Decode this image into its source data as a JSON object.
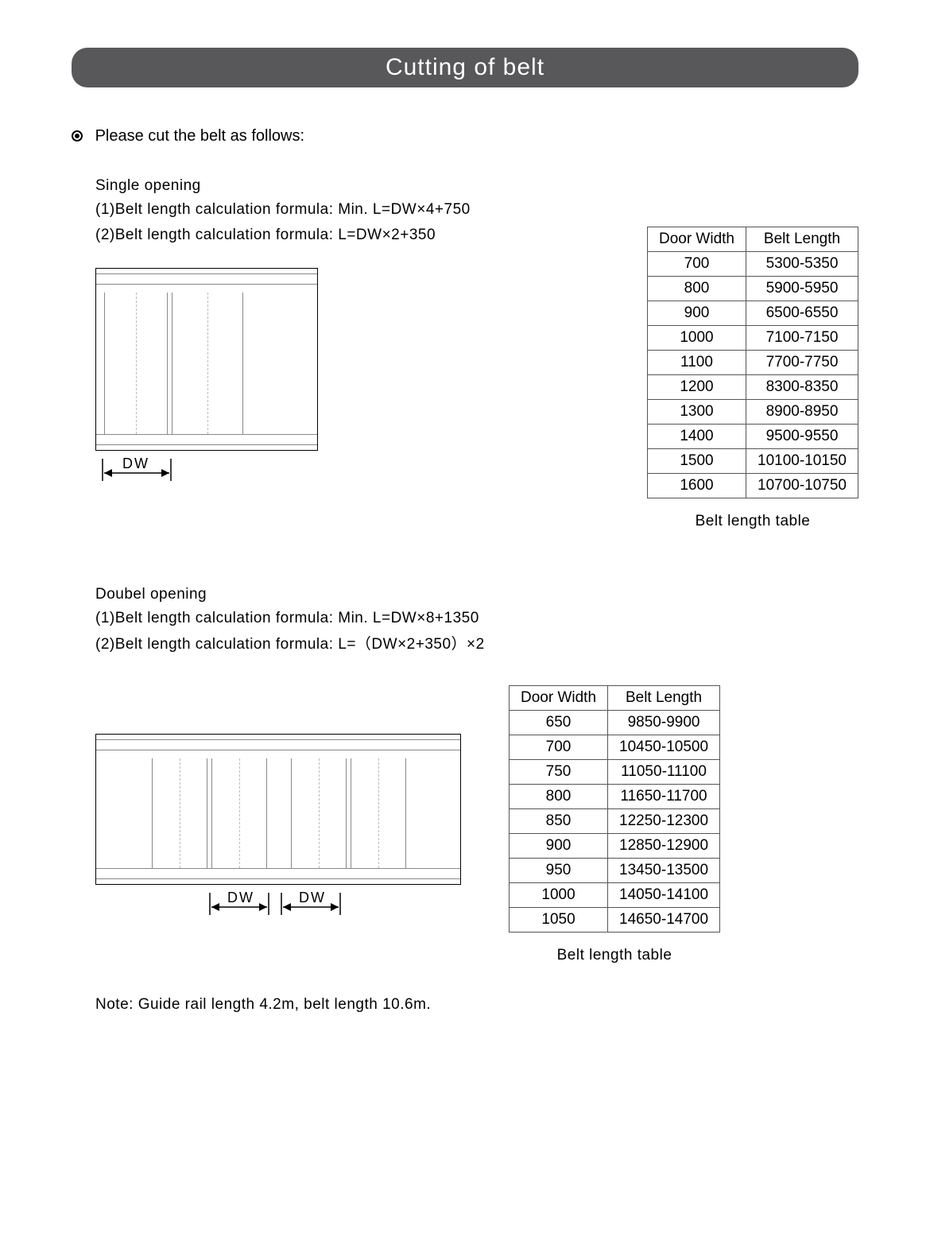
{
  "title": "Cutting of belt",
  "intro": "Please cut the belt as follows:",
  "single": {
    "heading": "Single opening",
    "formula1": "(1)Belt length calculation formula: Min. L=DW×4+750",
    "formula2": "(2)Belt length calculation formula: L=DW×2+350",
    "dw_label": "DW",
    "table": {
      "columns": [
        "Door Width",
        "Belt Length"
      ],
      "rows": [
        [
          "700",
          "5300-5350"
        ],
        [
          "800",
          "5900-5950"
        ],
        [
          "900",
          "6500-6550"
        ],
        [
          "1000",
          "7100-7150"
        ],
        [
          "1100",
          "7700-7750"
        ],
        [
          "1200",
          "8300-8350"
        ],
        [
          "1300",
          "8900-8950"
        ],
        [
          "1400",
          "9500-9550"
        ],
        [
          "1500",
          "10100-10150"
        ],
        [
          "1600",
          "10700-10750"
        ]
      ],
      "caption": "Belt length table"
    }
  },
  "double": {
    "heading": "Doubel opening",
    "formula1": "(1)Belt length calculation formula: Min. L=DW×8+1350",
    "formula2": "(2)Belt length calculation formula: L=（DW×2+350）×2",
    "dw_label": "DW",
    "table": {
      "columns": [
        "Door Width",
        "Belt Length"
      ],
      "rows": [
        [
          "650",
          "9850-9900"
        ],
        [
          "700",
          "10450-10500"
        ],
        [
          "750",
          "11050-11100"
        ],
        [
          "800",
          "11650-11700"
        ],
        [
          "850",
          "12250-12300"
        ],
        [
          "900",
          "12850-12900"
        ],
        [
          "950",
          "13450-13500"
        ],
        [
          "1000",
          "14050-14100"
        ],
        [
          "1050",
          "14650-14700"
        ]
      ],
      "caption": "Belt length table"
    }
  },
  "note": "Note: Guide rail length 4.2m, belt length 10.6m.",
  "colors": {
    "title_bg": "#58585a",
    "title_fg": "#ffffff",
    "line": "#888888",
    "border": "#000000"
  }
}
